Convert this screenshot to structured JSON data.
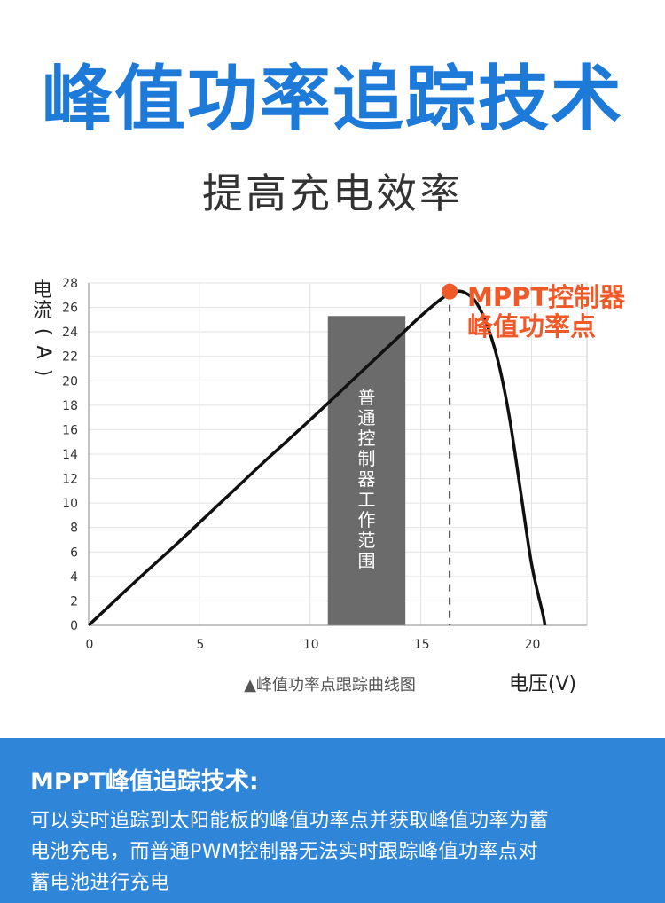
{
  "header": {
    "title": "峰值功率追踪技术",
    "subtitle": "提高充电效率"
  },
  "chart_data": {
    "type": "line",
    "ylabel": "电流(A)",
    "xlabel": "电压(V)",
    "caption": "▲峰值功率点跟踪曲线图",
    "xlim": [
      0,
      22.5
    ],
    "ylim": [
      0,
      28
    ],
    "x_ticks": [
      "0",
      "5",
      "10",
      "15",
      "20"
    ],
    "y_ticks": [
      "0",
      "2",
      "4",
      "6",
      "8",
      "10",
      "12",
      "14",
      "16",
      "18",
      "20",
      "22",
      "24",
      "26",
      "28"
    ],
    "grid": true,
    "series": [
      {
        "x": [
          0,
          2,
          4,
          6,
          8,
          10,
          12,
          14,
          15,
          16,
          16.5,
          17,
          17.5,
          18,
          18.5,
          19,
          19.5,
          20,
          20.5,
          20.6
        ],
        "y": [
          0,
          3.4,
          6.7,
          10.1,
          13.5,
          16.8,
          20.2,
          23.6,
          25.3,
          26.8,
          27.3,
          27.2,
          26.4,
          24.5,
          21.5,
          17,
          11,
          5,
          1,
          0
        ],
        "color": "#111111"
      }
    ],
    "shaded_region": {
      "label": "普通控制器工作范围",
      "x_range": [
        10.8,
        14.3
      ],
      "color": "#6b6b6b"
    },
    "peak_point": {
      "x": 16.3,
      "y": 27.3,
      "label_lines": [
        "MPPT控制器",
        "峰值功率点"
      ],
      "color": "#f05a28"
    },
    "dashed_line_x": 16.3
  },
  "footer": {
    "title": "MPPT峰值追踪技术:",
    "lines": [
      "可以实时追踪到太阳能板的峰值功率点并获取峰值功率为蓄",
      "电池充电，而普通PWM控制器无法实时跟踪峰值功率点对",
      "蓄电池进行充电"
    ],
    "color": "#2f86d8"
  }
}
